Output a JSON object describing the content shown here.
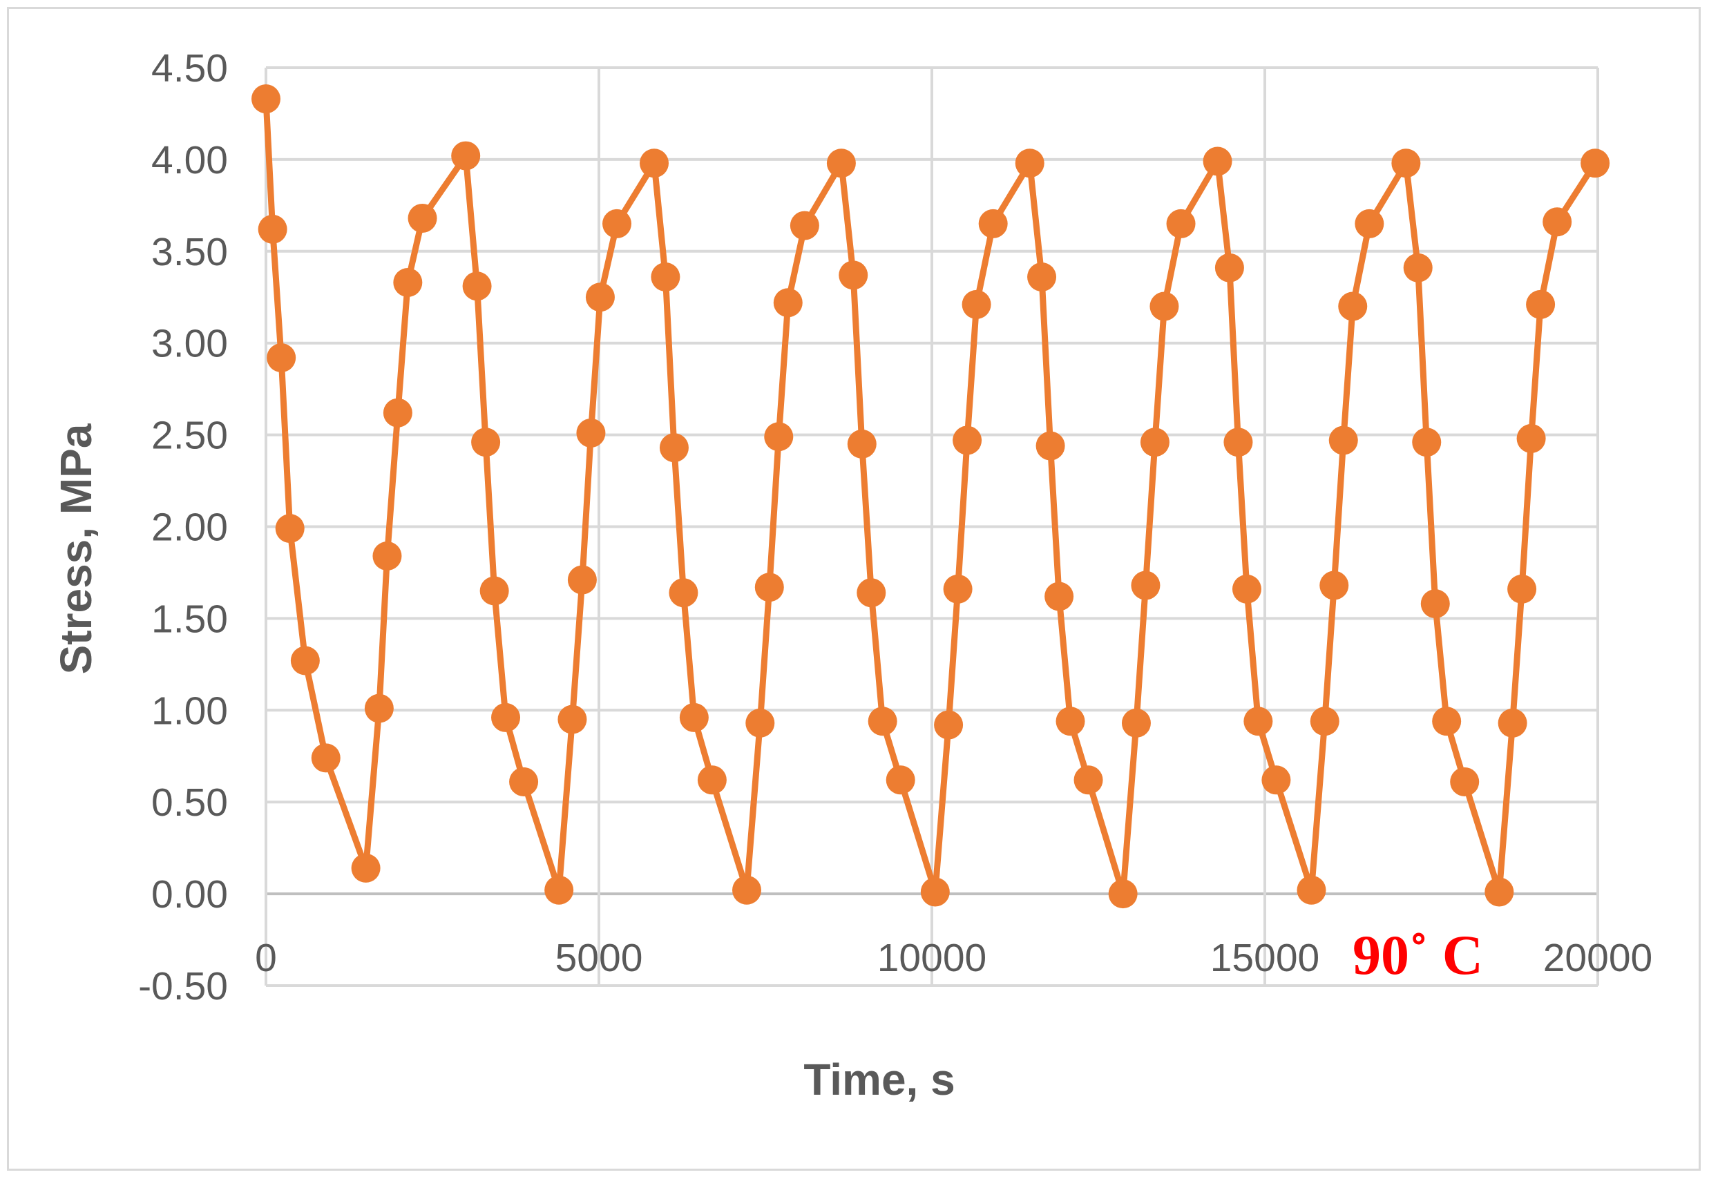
{
  "chart_data": {
    "type": "scatter",
    "xlabel": "Time, s",
    "ylabel": "Stress, MPa",
    "xlim": [
      0,
      20000
    ],
    "ylim": [
      -0.5,
      4.5
    ],
    "x_ticks": [
      "0",
      "5000",
      "10000",
      "15000",
      "20000"
    ],
    "y_ticks": [
      "-0.50",
      "0.00",
      "0.50",
      "1.00",
      "1.50",
      "2.00",
      "2.50",
      "3.00",
      "3.50",
      "4.00",
      "4.50"
    ],
    "grid": true,
    "legend": "none",
    "annotation": "90˚ C",
    "series": [
      {
        "color": "#ed7d31",
        "marker": "circle",
        "points": [
          [
            0,
            4.33
          ],
          [
            100,
            3.62
          ],
          [
            230,
            2.92
          ],
          [
            360,
            1.99
          ],
          [
            590,
            1.27
          ],
          [
            900,
            0.74
          ],
          [
            1500,
            0.14
          ],
          [
            1700,
            1.01
          ],
          [
            1820,
            1.84
          ],
          [
            1980,
            2.62
          ],
          [
            2130,
            3.33
          ],
          [
            2350,
            3.68
          ],
          [
            3000,
            4.02
          ],
          [
            3170,
            3.31
          ],
          [
            3300,
            2.46
          ],
          [
            3430,
            1.65
          ],
          [
            3600,
            0.96
          ],
          [
            3870,
            0.61
          ],
          [
            4400,
            0.02
          ],
          [
            4600,
            0.95
          ],
          [
            4750,
            1.71
          ],
          [
            4880,
            2.51
          ],
          [
            5020,
            3.25
          ],
          [
            5270,
            3.65
          ],
          [
            5830,
            3.98
          ],
          [
            6000,
            3.36
          ],
          [
            6130,
            2.43
          ],
          [
            6270,
            1.64
          ],
          [
            6430,
            0.96
          ],
          [
            6700,
            0.62
          ],
          [
            7220,
            0.02
          ],
          [
            7420,
            0.93
          ],
          [
            7560,
            1.67
          ],
          [
            7700,
            2.49
          ],
          [
            7840,
            3.22
          ],
          [
            8090,
            3.64
          ],
          [
            8640,
            3.98
          ],
          [
            8820,
            3.37
          ],
          [
            8950,
            2.45
          ],
          [
            9090,
            1.64
          ],
          [
            9260,
            0.94
          ],
          [
            9530,
            0.62
          ],
          [
            10050,
            0.01
          ],
          [
            10250,
            0.92
          ],
          [
            10390,
            1.66
          ],
          [
            10530,
            2.47
          ],
          [
            10670,
            3.21
          ],
          [
            10920,
            3.65
          ],
          [
            11470,
            3.98
          ],
          [
            11650,
            3.36
          ],
          [
            11780,
            2.44
          ],
          [
            11910,
            1.62
          ],
          [
            12080,
            0.94
          ],
          [
            12350,
            0.62
          ],
          [
            12870,
            0.0
          ],
          [
            13070,
            0.93
          ],
          [
            13210,
            1.68
          ],
          [
            13350,
            2.46
          ],
          [
            13490,
            3.2
          ],
          [
            13740,
            3.65
          ],
          [
            14290,
            3.99
          ],
          [
            14470,
            3.41
          ],
          [
            14600,
            2.46
          ],
          [
            14730,
            1.66
          ],
          [
            14900,
            0.94
          ],
          [
            15170,
            0.62
          ],
          [
            15700,
            0.02
          ],
          [
            15900,
            0.94
          ],
          [
            16040,
            1.68
          ],
          [
            16180,
            2.47
          ],
          [
            16320,
            3.2
          ],
          [
            16570,
            3.65
          ],
          [
            17120,
            3.98
          ],
          [
            17300,
            3.41
          ],
          [
            17430,
            2.46
          ],
          [
            17560,
            1.58
          ],
          [
            17730,
            0.94
          ],
          [
            18000,
            0.61
          ],
          [
            18520,
            0.01
          ],
          [
            18720,
            0.93
          ],
          [
            18860,
            1.66
          ],
          [
            19000,
            2.48
          ],
          [
            19140,
            3.21
          ],
          [
            19390,
            3.66
          ],
          [
            19960,
            3.98
          ]
        ]
      }
    ]
  }
}
